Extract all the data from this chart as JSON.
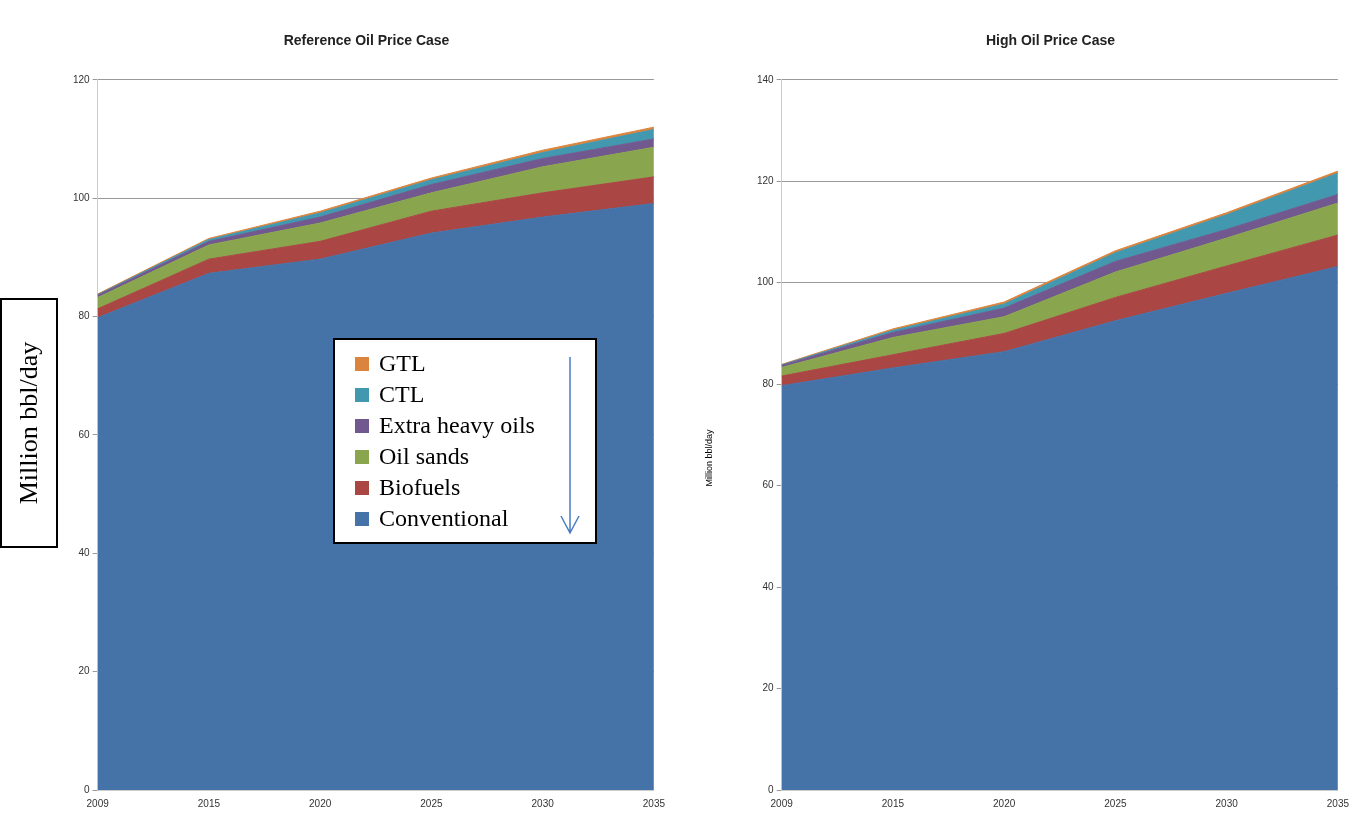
{
  "chart_data": [
    {
      "type": "area",
      "title": "Reference Oil Price Case",
      "ylabel": "Million bbl/day",
      "categories": [
        "2009",
        "2015",
        "2020",
        "2025",
        "2030",
        "2035"
      ],
      "stacked": true,
      "ylim": [
        0,
        120
      ],
      "yticks": [
        0,
        20,
        40,
        60,
        80,
        100,
        120
      ],
      "grid": "y",
      "legend": "center",
      "marker": "none",
      "series": [
        {
          "name": "Conventional",
          "color": "#4572a7",
          "values": [
            79.8,
            87.3,
            89.7,
            94.1,
            96.8,
            99.1
          ]
        },
        {
          "name": "Biofuels",
          "color": "#aa4643",
          "values": [
            1.5,
            2.4,
            3.0,
            3.7,
            4.1,
            4.5
          ]
        },
        {
          "name": "Oil sands",
          "color": "#89a54e",
          "values": [
            1.9,
            2.4,
            3.1,
            3.1,
            4.4,
            5.0
          ]
        },
        {
          "name": "Extra heavy oils",
          "color": "#71588f",
          "values": [
            0.4,
            0.6,
            1.0,
            1.4,
            1.4,
            1.4
          ]
        },
        {
          "name": "CTL",
          "color": "#4198af",
          "values": [
            0.1,
            0.3,
            0.7,
            0.8,
            1.0,
            1.6
          ]
        },
        {
          "name": "GTL",
          "color": "#db843d",
          "values": [
            0.1,
            0.2,
            0.3,
            0.3,
            0.4,
            0.4
          ]
        }
      ]
    },
    {
      "type": "area",
      "title": "High Oil Price Case",
      "ylabel": "Million bbl/day",
      "categories": [
        "2009",
        "2015",
        "2020",
        "2025",
        "2030",
        "2035"
      ],
      "stacked": true,
      "ylim": [
        0,
        140
      ],
      "yticks": [
        0,
        20,
        40,
        60,
        80,
        100,
        120,
        140
      ],
      "grid": "y",
      "marker": "none",
      "series": [
        {
          "color": "#4572a7",
          "values": [
            79.7,
            83.2,
            86.4,
            92.5,
            97.9,
            103.2
          ]
        },
        {
          "color": "#aa4643",
          "values": [
            1.9,
            2.6,
            3.6,
            4.6,
            5.4,
            6.2
          ]
        },
        {
          "color": "#89a54e",
          "values": [
            1.7,
            3.4,
            3.3,
            5.0,
            5.5,
            6.3
          ]
        },
        {
          "color": "#71588f",
          "values": [
            0.4,
            1.0,
            1.7,
            2.1,
            1.7,
            1.7
          ]
        },
        {
          "color": "#4198af",
          "values": [
            0.1,
            0.4,
            0.8,
            1.7,
            2.9,
            4.2
          ]
        },
        {
          "color": "#db843d",
          "values": [
            0.1,
            0.3,
            0.4,
            0.4,
            0.4,
            0.4
          ]
        }
      ]
    }
  ]
}
